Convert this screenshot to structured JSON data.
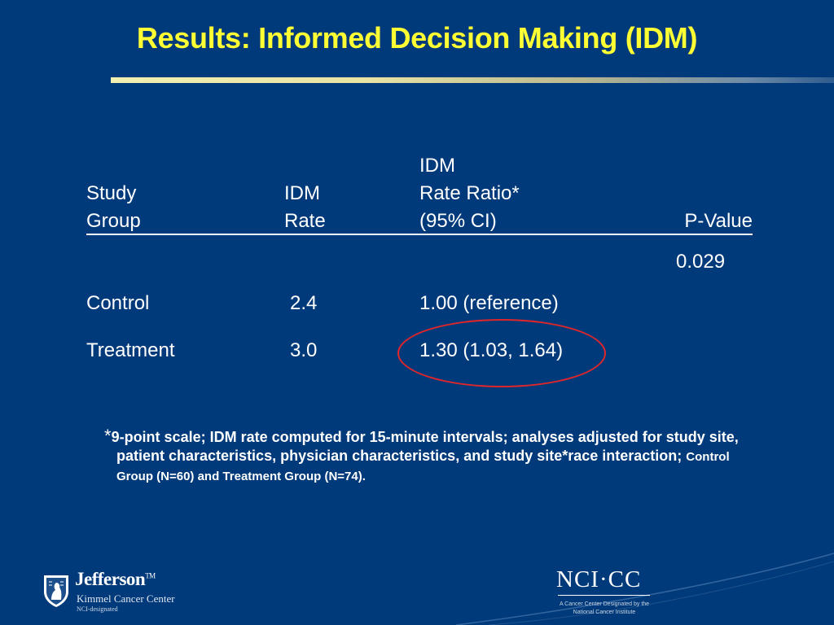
{
  "slide": {
    "title": "Results: Informed Decision Making (IDM)",
    "colors": {
      "background": "#003a7a",
      "title": "#ffff33",
      "text": "#ffffff",
      "highlight": "#e0262a"
    }
  },
  "table": {
    "headers": {
      "group": [
        "",
        "Study",
        "Group"
      ],
      "rate": [
        "",
        "IDM",
        "Rate"
      ],
      "ratio": [
        "IDM",
        "Rate Ratio*",
        "(95% CI)"
      ],
      "p_value": [
        "",
        "",
        "P-Value"
      ]
    },
    "p_value": "0.029",
    "rows": [
      {
        "group": "Control",
        "rate": "2.4",
        "ratio": "1.00 (reference)"
      },
      {
        "group": "Treatment",
        "rate": "3.0",
        "ratio": "1.30 (1.03, 1.64)"
      }
    ]
  },
  "footnote": {
    "asterisk": "*",
    "main": "9-point scale; IDM rate computed for 15-minute intervals; analyses adjusted for study site, patient characteristics, physician characteristics, and study site*race interaction;",
    "small": "Control Group (N=60) and Treatment Group (N=74)."
  },
  "logos": {
    "jefferson": {
      "icon": "jefferson-shield-icon",
      "name": "Jefferson",
      "tm": "TM",
      "subtitle": "Kimmel Cancer Center",
      "designation": "NCI-designated"
    },
    "nci": {
      "mark": "NCI·CC",
      "caption_line1": "A Cancer Center Designated by the",
      "caption_line2": "National Cancer Institute"
    }
  }
}
